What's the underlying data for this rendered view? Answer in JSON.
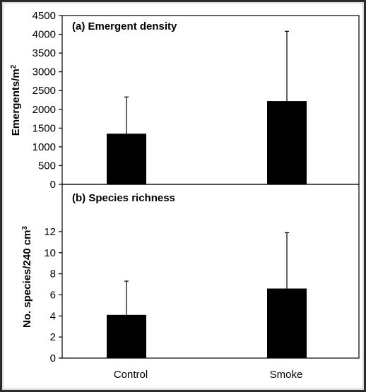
{
  "chart_data": [
    {
      "type": "bar",
      "panel_label": "(a) Emergent density",
      "categories": [
        "Control",
        "Smoke"
      ],
      "values": [
        1350,
        2220
      ],
      "error_upper": [
        2330,
        4080
      ],
      "ylabel": "Emergents/m",
      "ylabel_superscript": "2",
      "ylim": [
        0,
        4500
      ],
      "yticks": [
        0,
        500,
        1000,
        1500,
        2000,
        2500,
        3000,
        3500,
        4000,
        4500
      ],
      "grid": false,
      "bar_color": "#000000"
    },
    {
      "type": "bar",
      "panel_label": "(b) Species richness",
      "categories": [
        "Control",
        "Smoke"
      ],
      "values": [
        4.1,
        6.6
      ],
      "error_upper": [
        7.3,
        11.9
      ],
      "ylabel": "No. species/240 cm",
      "ylabel_superscript": "3",
      "ylim": [
        0,
        13.2
      ],
      "yticks": [
        0,
        2,
        4,
        6,
        8,
        10,
        12
      ],
      "grid": false,
      "bar_color": "#000000"
    }
  ],
  "x_categories": [
    "Control",
    "Smoke"
  ],
  "colors": {
    "background": "#ffffff",
    "frame": "#2b2b2b",
    "bars": "#000000"
  }
}
